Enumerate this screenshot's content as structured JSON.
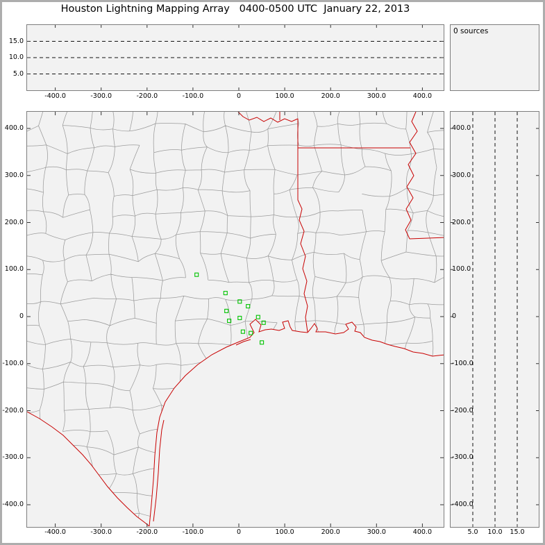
{
  "title": "Houston Lightning Mapping Array   0400-0500 UTC  January 22, 2013",
  "sources_panel": {
    "label": "0 sources"
  },
  "axes": {
    "xy_tick_labels": [
      "-400.0",
      "-300.0",
      "-200.0",
      "-100.0",
      "0",
      "100.0",
      "200.0",
      "300.0",
      "400.0"
    ],
    "xy_tick_km": [
      -400,
      -300,
      -200,
      -100,
      0,
      100,
      200,
      300,
      400
    ],
    "y_tick_labels_desc": [
      "400.0",
      "300.0",
      "200.0",
      "100.0",
      "0",
      "-100.0",
      "-200.0",
      "-300.0",
      "-400.0"
    ],
    "y_tick_km_desc": [
      400,
      300,
      200,
      100,
      0,
      -100,
      -200,
      -300,
      -400
    ],
    "alt_tick_labels": [
      "5.0",
      "10.0",
      "15.0"
    ],
    "alt_tick_km": [
      5,
      10,
      15
    ],
    "alt_axis_max_km": 20
  },
  "stations_km": [
    [
      -92,
      89
    ],
    [
      -29,
      50
    ],
    [
      2,
      32
    ],
    [
      -27,
      12
    ],
    [
      20,
      22
    ],
    [
      -21,
      -9
    ],
    [
      2,
      -3
    ],
    [
      42,
      -1
    ],
    [
      9,
      -32
    ],
    [
      26,
      -35
    ],
    [
      54,
      -13
    ],
    [
      50,
      -55
    ]
  ],
  "colors": {
    "boundary_red": "#c80000",
    "county_gray": "#9b9b9b",
    "station_green": "#00c300",
    "dashed_line": "#111111",
    "tick_mark": "#333333",
    "panel_bg": "#f2f2f2"
  },
  "chart_data": {
    "type": "scatter",
    "title": "Houston Lightning Mapping Array 0400-0500 UTC January 22, 2013",
    "n_sources": 0,
    "panels": [
      {
        "name": "altitude-vs-east-west",
        "x_ticks_km": [
          -400,
          -300,
          -200,
          -100,
          0,
          100,
          200,
          300,
          400
        ],
        "x_range_km": [
          -455,
          455
        ],
        "y_dashed_gridlines_km": [
          5,
          10,
          15
        ],
        "y_range_km": [
          0,
          20
        ],
        "points": []
      },
      {
        "name": "source-histogram",
        "label": "0 sources",
        "points": []
      },
      {
        "name": "plan-view-map",
        "x_ticks_km": [
          -400,
          -300,
          -200,
          -100,
          0,
          100,
          200,
          300,
          400
        ],
        "y_ticks_km": [
          400,
          300,
          200,
          100,
          0,
          -100,
          -200,
          -300,
          -400
        ],
        "x_range_km": [
          -455,
          455
        ],
        "y_range_km": [
          -448,
          437
        ],
        "basemap": "Texas / Louisiana county boundaries (gray), state borders and coastline (red)",
        "lma_stations_km": [
          [
            -92,
            89
          ],
          [
            -29,
            50
          ],
          [
            2,
            32
          ],
          [
            -27,
            12
          ],
          [
            20,
            22
          ],
          [
            -21,
            -9
          ],
          [
            2,
            -3
          ],
          [
            42,
            -1
          ],
          [
            9,
            -32
          ],
          [
            26,
            -35
          ],
          [
            54,
            -13
          ],
          [
            50,
            -55
          ]
        ],
        "points": []
      },
      {
        "name": "altitude-vs-north-south",
        "x_dashed_gridlines_km": [
          5,
          10,
          15
        ],
        "x_range_km": [
          0,
          20
        ],
        "y_ticks_km": [
          400,
          300,
          200,
          100,
          0,
          -100,
          -200,
          -300,
          -400
        ],
        "points": []
      }
    ],
    "legend_position": "none",
    "grid": "dashed altitude gridlines at 5, 10, 15 km"
  }
}
